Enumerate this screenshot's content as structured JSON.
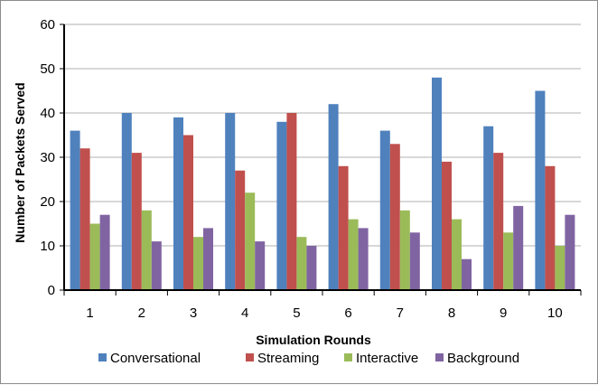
{
  "chart_data": {
    "type": "bar",
    "title": "",
    "xlabel": "Simulation Rounds",
    "ylabel": "Number of Packets Served",
    "categories": [
      "1",
      "2",
      "3",
      "4",
      "5",
      "6",
      "7",
      "8",
      "9",
      "10"
    ],
    "ylim": [
      0,
      60
    ],
    "yticks": [
      "0",
      "10",
      "20",
      "30",
      "40",
      "50",
      "60"
    ],
    "grid": true,
    "legend_position": "bottom",
    "series": [
      {
        "name": "Conversational",
        "color": "#4F81BD",
        "values": [
          36,
          40,
          39,
          40,
          38,
          42,
          36,
          48,
          37,
          45
        ]
      },
      {
        "name": "Streaming",
        "color": "#C0504D",
        "values": [
          32,
          31,
          35,
          27,
          40,
          28,
          33,
          29,
          31,
          28
        ]
      },
      {
        "name": "Interactive",
        "color": "#9BBB59",
        "values": [
          15,
          18,
          12,
          22,
          12,
          16,
          18,
          16,
          13,
          10
        ]
      },
      {
        "name": "Background",
        "color": "#8064A2",
        "values": [
          17,
          11,
          14,
          11,
          10,
          14,
          13,
          7,
          19,
          17
        ]
      }
    ]
  }
}
